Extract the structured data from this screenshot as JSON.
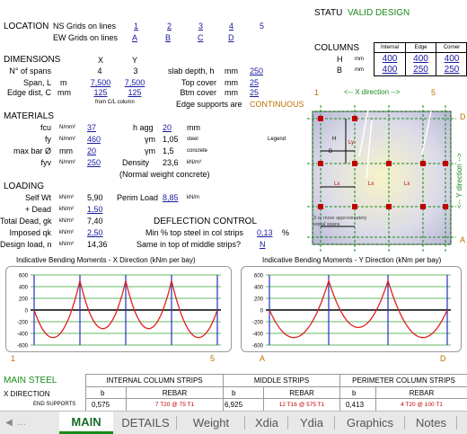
{
  "status": {
    "label": "STATU",
    "value": "VALID DESIGN"
  },
  "location": {
    "title": "LOCATION",
    "ns_label": "NS Grids on lines",
    "ns_values": [
      "1",
      "2",
      "3",
      "4",
      "5"
    ],
    "ew_label": "EW Grids on lines",
    "ew_values": [
      "A",
      "B",
      "C",
      "D"
    ]
  },
  "columns": {
    "title": "COLUMNS",
    "headers": [
      "Internal",
      "Edge",
      "Corner"
    ],
    "rows": [
      {
        "label": "H",
        "unit": "mm",
        "values": [
          "400",
          "400",
          "400"
        ]
      },
      {
        "label": "B",
        "unit": "mm",
        "values": [
          "400",
          "250",
          "250"
        ]
      }
    ]
  },
  "dimensions": {
    "title": "DIMENSIONS",
    "col_x": "X",
    "col_y": "Y",
    "rows": [
      {
        "label": "N° of spans",
        "unit": "",
        "x": "4",
        "y": "3"
      },
      {
        "label": "Span, L",
        "unit": "m",
        "x": "7,500",
        "y": "7,500"
      },
      {
        "label": "Edge dist, C",
        "unit": "mm",
        "x": "125",
        "y": "125"
      }
    ],
    "from_note": "from C/L column",
    "slab_depth_label": "slab depth, h",
    "slab_depth_unit": "mm",
    "slab_depth": "250",
    "top_cover_label": "Top cover",
    "top_cover_unit": "mm",
    "top_cover": "25",
    "btm_cover_label": "Btm cover",
    "btm_cover_unit": "mm",
    "btm_cover": "25",
    "edge_support_label": "Edge supports are",
    "edge_support": "CONTINUOUS"
  },
  "materials": {
    "title": "MATERIALS",
    "fcu_label": "fcu",
    "fcu_unit": "N/mm²",
    "fcu": "37",
    "fy_label": "fy",
    "fy_unit": "N/mm²",
    "fy": "460",
    "maxbar_label": "max bar Ø",
    "maxbar_unit": "mm",
    "maxbar": "20",
    "fyv_label": "fyv",
    "fyv_unit": "N/mm²",
    "fyv": "250",
    "hagg_label": "h agg",
    "hagg_unit": "mm",
    "hagg": "20",
    "ym_steel_label": "γm",
    "ym_steel": "1,05",
    "ym_steel_note": "steel",
    "ym_conc_label": "γm",
    "ym_conc": "1,5",
    "ym_conc_note": "concrete",
    "density_label": "Density",
    "density": "23,6",
    "density_unit": "kN/m³",
    "concrete_note": "(Normal weight concrete)",
    "legend_label": "Legend"
  },
  "loading": {
    "title": "LOADING",
    "self_wt_label": "Self Wt",
    "self_wt_unit": "kN/m²",
    "self_wt": "5,90",
    "perim_label": "Perim Load",
    "perim": "8,85",
    "perim_unit": "kN/m",
    "dead_label": "+ Dead",
    "dead_unit": "kN/m²",
    "dead": "1,50",
    "total_dead_label": "Total Dead, gk",
    "total_dead_unit": "kN/m²",
    "total_dead": "7,40",
    "imposed_label": "Imposed qk",
    "imposed_unit": "kN/m²",
    "imposed": "2,50",
    "design_label": "Design load, n",
    "design_unit": "kN/m²",
    "design": "14,36"
  },
  "deflection": {
    "title": "DEFLECTION CONTROL",
    "min_label": "Min % top steel in col strips",
    "min_value": "0,13",
    "min_unit": "%",
    "same_label": "Same in top of middle strips?",
    "same_value": "N"
  },
  "plan": {
    "x_dir_label": "<-- X direction -->",
    "y_dir_label": "<-- Y direction -->",
    "left_num": "1",
    "right_num": "5",
    "top_letter": "D",
    "bottom_letter": "A",
    "note": "3 or more approximately equal spans",
    "h_label": "H",
    "b_label": "B",
    "span_label": "Lx",
    "span_label_y": "Ly"
  },
  "chart_data": [
    {
      "type": "line",
      "title": "Indicative Bending Moments - X Direction (kNm per bay)",
      "ylim": [
        -600,
        600
      ],
      "yticks": [
        "600",
        "400",
        "200",
        "0",
        "-200",
        "-400",
        "-600"
      ],
      "start_label": "1",
      "end_label": "5",
      "spans": 4,
      "support_moments": [
        0,
        500,
        500,
        500,
        0
      ],
      "span_moments": [
        -450,
        -320,
        -320,
        -450
      ]
    },
    {
      "type": "line",
      "title": "Indicative Bending Moments - Y Direction (kNm per bay)",
      "ylim": [
        -600,
        600
      ],
      "yticks": [
        "600",
        "400",
        "200",
        "0",
        "-200",
        "-400",
        "-600"
      ],
      "start_label": "A",
      "end_label": "D",
      "spans": 3,
      "support_moments": [
        0,
        500,
        500,
        0
      ],
      "span_moments": [
        -450,
        -300,
        -450
      ]
    }
  ],
  "main_steel": {
    "title": "MAIN STEEL",
    "x_dir_label": "X DIRECTION",
    "end_supports_label": "END SUPPORTS",
    "groups": [
      "INTERNAL COLUMN STRIPS",
      "MIDDLE STRIPS",
      "PERIMETER COLUMN STRIPS"
    ],
    "sub_b": "b",
    "sub_rebar": "REBAR",
    "row": [
      {
        "b": "0,575",
        "rebar": "7 T20 @ 75 T1"
      },
      {
        "b": "6,925",
        "rebar": "12 T16 @ 575 T1"
      },
      {
        "b": "0,413",
        "rebar": "4 T20 @ 100 T1"
      }
    ]
  },
  "tabs": [
    "MAIN",
    "DETAILS",
    "Weight",
    "Xdia",
    "Ydia",
    "Graphics",
    "Notes"
  ],
  "colors": {
    "accent_green": "#1a8a1a",
    "input_blue": "#1a1aa0",
    "curve_red": "#e02020"
  }
}
